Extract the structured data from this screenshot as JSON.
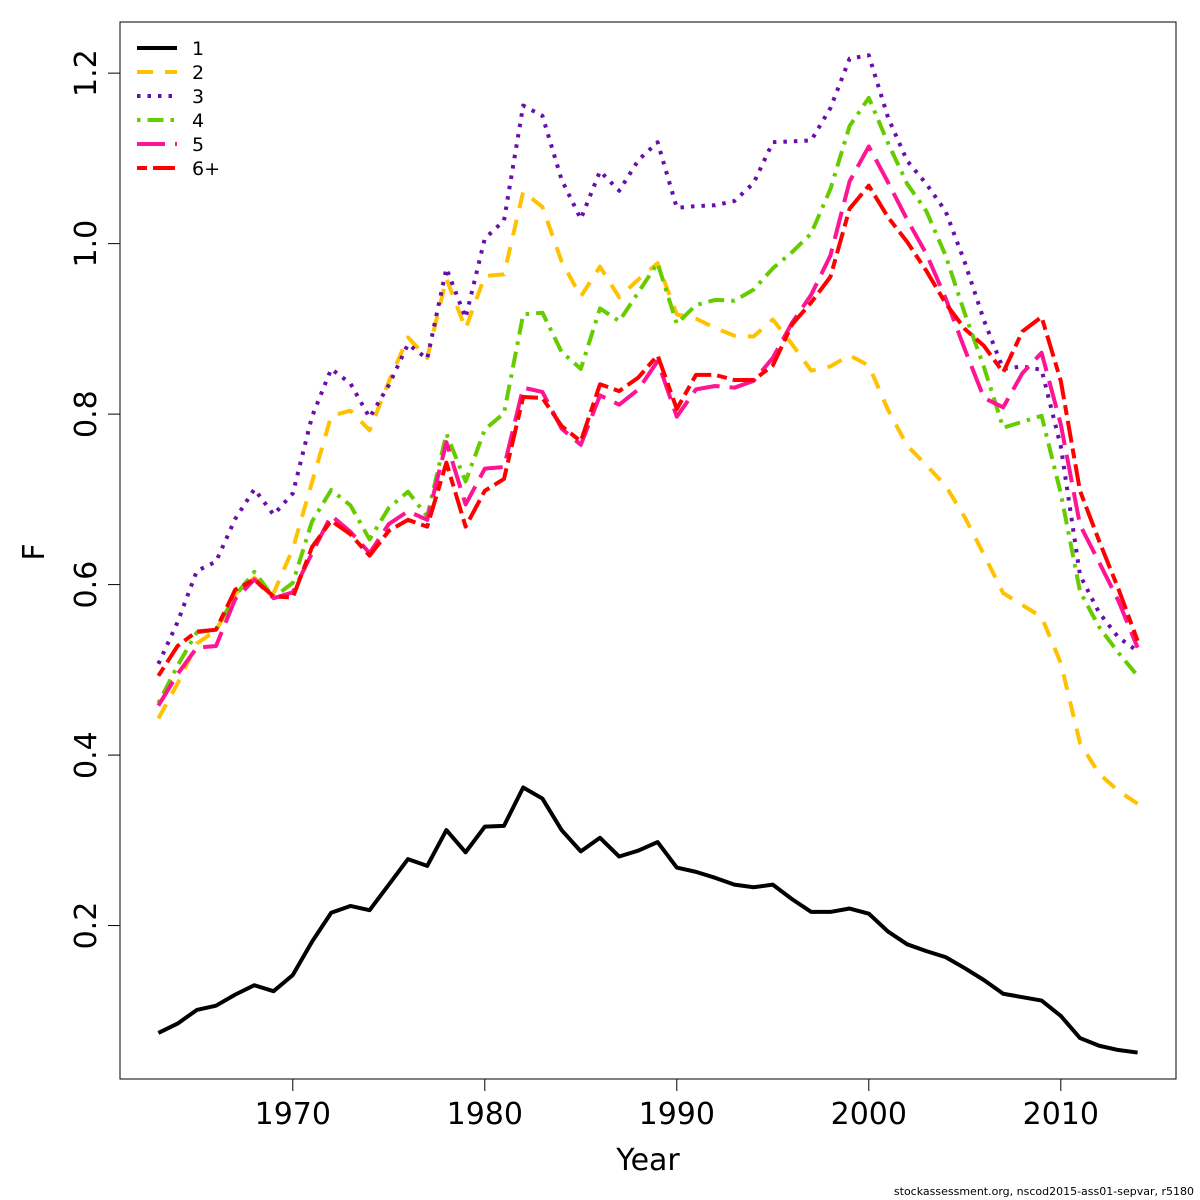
{
  "chart_data": {
    "type": "line",
    "title": "",
    "xlabel": "Year",
    "ylabel": "F",
    "xlim": [
      1961,
      2016
    ],
    "ylim": [
      0.02,
      1.26
    ],
    "x_ticks": [
      1970,
      1980,
      1990,
      2000,
      2010
    ],
    "y_ticks": [
      0.2,
      0.4,
      0.6,
      0.8,
      1.0,
      1.2
    ],
    "x_tick_labels": [
      "1970",
      "1980",
      "1990",
      "2000",
      "2010"
    ],
    "y_tick_labels": [
      "0.2",
      "0.4",
      "0.6",
      "0.8",
      "1.0",
      "1.2"
    ],
    "grid": false,
    "legend_position": "top-left",
    "x": [
      1963,
      1964,
      1965,
      1966,
      1967,
      1968,
      1969,
      1970,
      1971,
      1972,
      1973,
      1974,
      1975,
      1976,
      1977,
      1978,
      1979,
      1980,
      1981,
      1982,
      1983,
      1984,
      1985,
      1986,
      1987,
      1988,
      1989,
      1990,
      1991,
      1992,
      1993,
      1994,
      1995,
      1996,
      1997,
      1998,
      1999,
      2000,
      2001,
      2002,
      2003,
      2004,
      2005,
      2006,
      2007,
      2008,
      2009,
      2010,
      2011,
      2012,
      2013,
      2014
    ],
    "series": [
      {
        "name": "1",
        "color": "#000000",
        "dash": "solid",
        "values": [
          0.074,
          0.085,
          0.101,
          0.106,
          0.119,
          0.13,
          0.123,
          0.142,
          0.181,
          0.215,
          0.223,
          0.218,
          0.248,
          0.278,
          0.27,
          0.312,
          0.286,
          0.316,
          0.317,
          0.362,
          0.349,
          0.312,
          0.287,
          0.303,
          0.281,
          0.288,
          0.298,
          0.268,
          0.263,
          0.256,
          0.248,
          0.245,
          0.248,
          0.231,
          0.216,
          0.216,
          0.22,
          0.214,
          0.193,
          0.178,
          0.17,
          0.163,
          0.15,
          0.136,
          0.12,
          0.116,
          0.112,
          0.094,
          0.068,
          0.059,
          0.054,
          0.051
        ]
      },
      {
        "name": "2",
        "color": "#FFC200",
        "dash": "dashed",
        "values": [
          0.443,
          0.484,
          0.531,
          0.546,
          0.589,
          0.608,
          0.59,
          0.642,
          0.72,
          0.798,
          0.804,
          0.781,
          0.838,
          0.89,
          0.866,
          0.959,
          0.9,
          0.962,
          0.964,
          1.061,
          1.043,
          0.979,
          0.938,
          0.973,
          0.937,
          0.958,
          0.977,
          0.917,
          0.912,
          0.901,
          0.892,
          0.891,
          0.911,
          0.882,
          0.851,
          0.856,
          0.869,
          0.857,
          0.805,
          0.763,
          0.74,
          0.716,
          0.679,
          0.635,
          0.59,
          0.576,
          0.562,
          0.508,
          0.414,
          0.378,
          0.358,
          0.343
        ]
      },
      {
        "name": "3",
        "color": "#6A0DAD",
        "dash": "dotted",
        "values": [
          0.507,
          0.556,
          0.616,
          0.627,
          0.677,
          0.712,
          0.682,
          0.707,
          0.797,
          0.853,
          0.836,
          0.796,
          0.834,
          0.882,
          0.865,
          0.971,
          0.913,
          1.006,
          1.027,
          1.162,
          1.15,
          1.075,
          1.029,
          1.085,
          1.062,
          1.098,
          1.119,
          1.042,
          1.044,
          1.045,
          1.05,
          1.071,
          1.119,
          1.12,
          1.121,
          1.159,
          1.217,
          1.221,
          1.148,
          1.097,
          1.07,
          1.038,
          0.978,
          0.91,
          0.853,
          0.856,
          0.852,
          0.762,
          0.611,
          0.567,
          0.538,
          0.522
        ]
      },
      {
        "name": "4",
        "color": "#66CC00",
        "dash": "dotdash",
        "values": [
          0.461,
          0.505,
          0.544,
          0.547,
          0.587,
          0.615,
          0.585,
          0.602,
          0.674,
          0.711,
          0.693,
          0.653,
          0.69,
          0.709,
          0.68,
          0.777,
          0.721,
          0.782,
          0.801,
          0.917,
          0.919,
          0.873,
          0.853,
          0.924,
          0.909,
          0.943,
          0.977,
          0.906,
          0.928,
          0.934,
          0.933,
          0.946,
          0.971,
          0.99,
          1.012,
          1.064,
          1.138,
          1.171,
          1.118,
          1.07,
          1.038,
          0.986,
          0.918,
          0.855,
          0.784,
          0.791,
          0.798,
          0.707,
          0.592,
          0.55,
          0.52,
          0.493
        ]
      },
      {
        "name": "5",
        "color": "#FF1493",
        "dash": "longdash",
        "values": [
          0.458,
          0.495,
          0.526,
          0.528,
          0.583,
          0.606,
          0.584,
          0.591,
          0.637,
          0.681,
          0.662,
          0.637,
          0.671,
          0.686,
          0.676,
          0.767,
          0.694,
          0.736,
          0.738,
          0.831,
          0.826,
          0.783,
          0.764,
          0.822,
          0.811,
          0.829,
          0.862,
          0.797,
          0.829,
          0.833,
          0.831,
          0.839,
          0.866,
          0.907,
          0.94,
          0.986,
          1.073,
          1.114,
          1.072,
          1.028,
          0.988,
          0.936,
          0.876,
          0.819,
          0.808,
          0.848,
          0.872,
          0.788,
          0.67,
          0.626,
          0.581,
          0.526
        ]
      },
      {
        "name": "6+",
        "color": "#FF0000",
        "dash": "twodash",
        "values": [
          0.493,
          0.528,
          0.545,
          0.547,
          0.594,
          0.606,
          0.586,
          0.585,
          0.644,
          0.675,
          0.659,
          0.634,
          0.663,
          0.676,
          0.668,
          0.743,
          0.668,
          0.71,
          0.724,
          0.82,
          0.819,
          0.786,
          0.768,
          0.835,
          0.827,
          0.843,
          0.869,
          0.806,
          0.846,
          0.846,
          0.84,
          0.84,
          0.857,
          0.905,
          0.931,
          0.961,
          1.041,
          1.068,
          1.031,
          1.002,
          0.968,
          0.93,
          0.9,
          0.88,
          0.849,
          0.897,
          0.914,
          0.839,
          0.71,
          0.651,
          0.595,
          0.534
        ]
      }
    ]
  },
  "footer_text": "stockassessment.org, nscod2015-ass01-sepvar, r5180"
}
